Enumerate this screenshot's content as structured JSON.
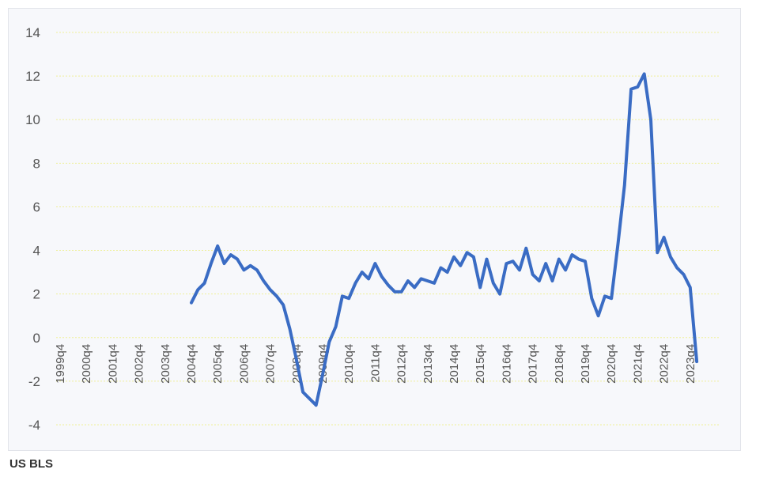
{
  "source": "US BLS",
  "colors": {
    "line": "#3a6cc4",
    "grid": "#efef9a",
    "axis_text": "#555555",
    "frame": "#f7f8fb"
  },
  "chart_data": {
    "type": "line",
    "title": "",
    "xlabel": "",
    "ylabel": "",
    "ylim": [
      -4,
      14
    ],
    "yticks": [
      "14",
      "12",
      "10",
      "8",
      "6",
      "4",
      "2",
      "0",
      "-2",
      "-4"
    ],
    "x_labels": [
      "1999q4",
      "2000q4",
      "2001q4",
      "2002q4",
      "2003q4",
      "2004q4",
      "2005q4",
      "2006q4",
      "2007q4",
      "2008q4",
      "2009q4",
      "2010q4",
      "2011q4",
      "2012q4",
      "2013q4",
      "2014q4",
      "2015q4",
      "2016q4",
      "2017q4",
      "2018q4",
      "2019q4",
      "2020q4",
      "2021q4",
      "2022q4",
      "2023q4"
    ],
    "grid": true,
    "legend": "none",
    "series": [
      {
        "values": [
          null,
          null,
          null,
          null,
          null,
          null,
          null,
          null,
          null,
          null,
          null,
          null,
          null,
          null,
          null,
          null,
          null,
          null,
          null,
          null,
          1.6,
          2.2,
          2.5,
          3.4,
          4.2,
          3.4,
          3.8,
          3.6,
          3.1,
          3.3,
          3.1,
          2.6,
          2.2,
          1.9,
          1.5,
          0.4,
          -1.0,
          -2.5,
          -2.8,
          -3.1,
          -1.7,
          -0.2,
          0.5,
          1.9,
          1.8,
          2.5,
          3.0,
          2.7,
          3.4,
          2.8,
          2.4,
          2.1,
          2.1,
          2.6,
          2.3,
          2.7,
          2.6,
          2.5,
          3.2,
          3.0,
          3.7,
          3.3,
          3.9,
          3.7,
          2.3,
          3.6,
          2.5,
          2.0,
          3.4,
          3.5,
          3.1,
          4.1,
          2.9,
          2.6,
          3.4,
          2.6,
          3.6,
          3.1,
          3.8,
          3.6,
          3.5,
          1.8,
          1.0,
          1.9,
          1.8,
          4.3,
          7.0,
          11.4,
          11.5,
          12.1,
          10.0,
          3.9,
          4.6,
          3.7,
          3.2,
          2.9,
          2.3,
          -1.1
        ]
      }
    ]
  }
}
